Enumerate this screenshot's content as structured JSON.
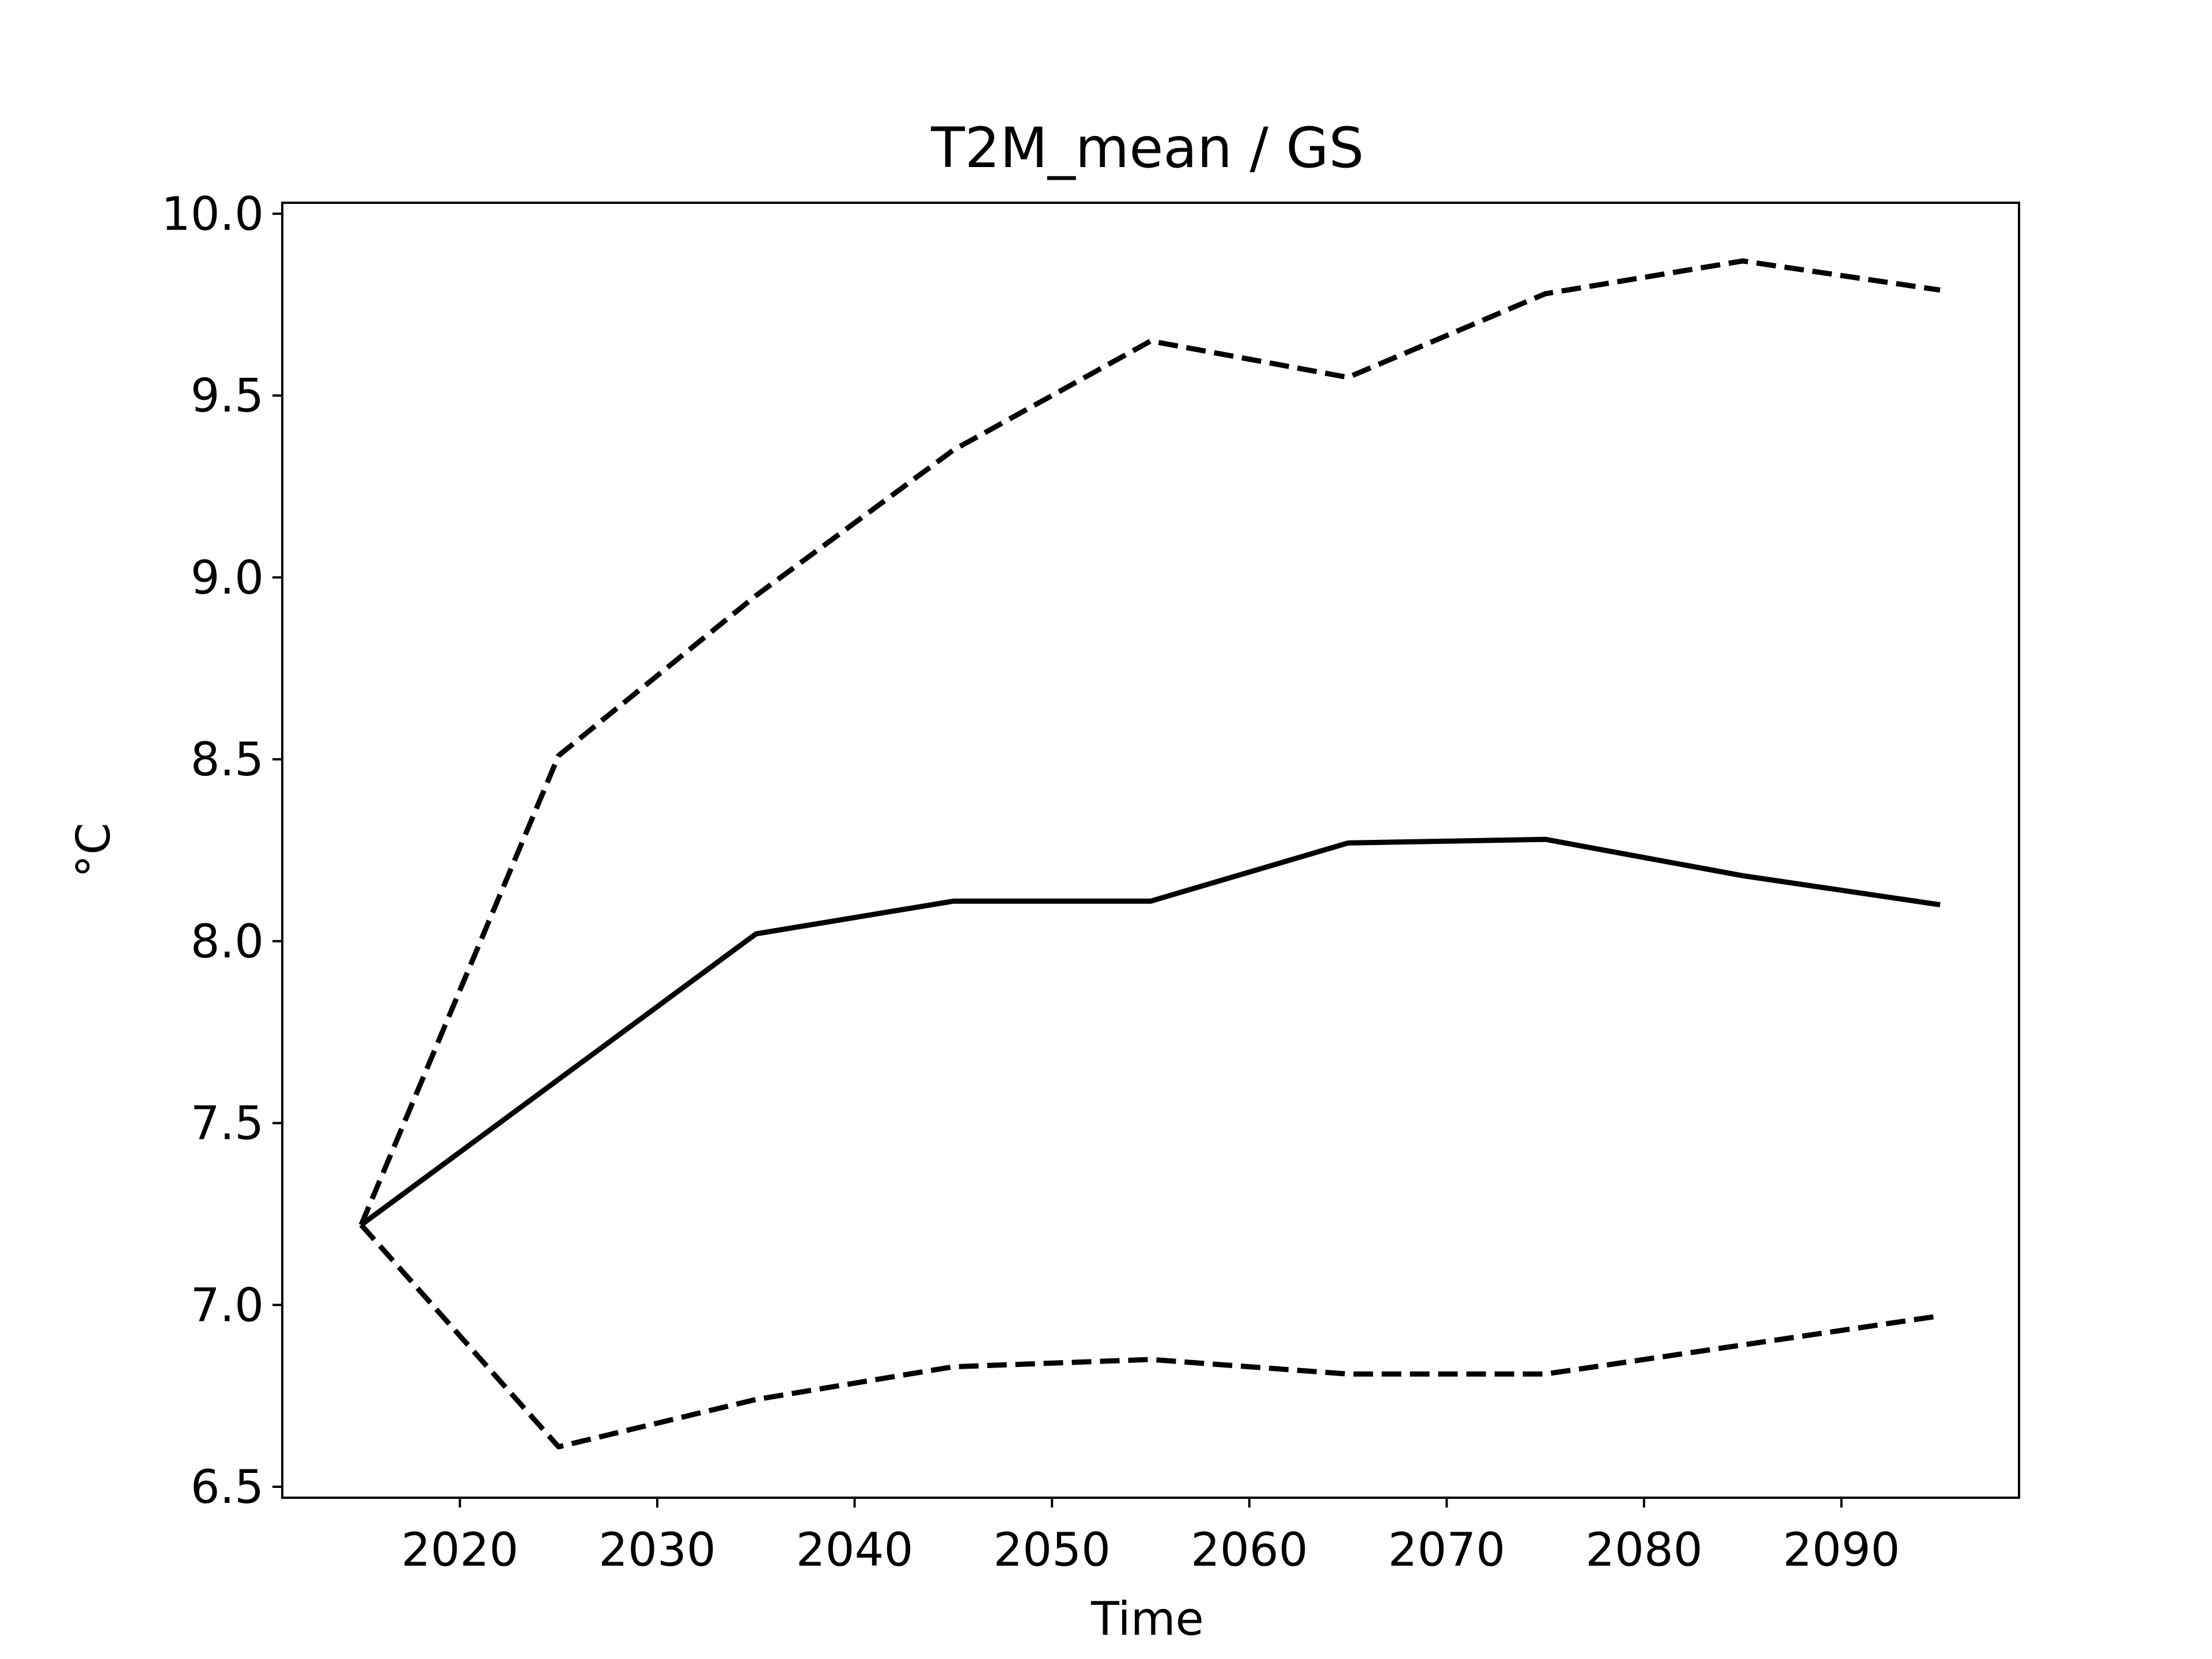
{
  "chart_data": {
    "type": "line",
    "title": "T2M_mean / GS",
    "xlabel": "Time",
    "ylabel": "°C",
    "xlim": [
      2011,
      2099
    ],
    "ylim": [
      6.47,
      10.03
    ],
    "x_ticks": [
      2020,
      2030,
      2040,
      2050,
      2060,
      2070,
      2080,
      2090
    ],
    "y_ticks": [
      6.5,
      7.0,
      7.5,
      8.0,
      8.5,
      9.0,
      9.5,
      10.0
    ],
    "x_tick_labels": [
      "2020",
      "2030",
      "2040",
      "2050",
      "2060",
      "2070",
      "2080",
      "2090"
    ],
    "y_tick_labels": [
      "6.5",
      "7.0",
      "7.5",
      "8.0",
      "8.5",
      "9.0",
      "9.5",
      "10.0"
    ],
    "grid": false,
    "series": [
      {
        "style": "solid",
        "color": "#000000",
        "x": [
          2015,
          2025,
          2035,
          2045,
          2055,
          2065,
          2075,
          2085,
          2095
        ],
        "y": [
          7.22,
          7.62,
          8.02,
          8.11,
          8.11,
          8.27,
          8.28,
          8.18,
          8.1
        ]
      },
      {
        "style": "dashed",
        "color": "#000000",
        "x": [
          2015,
          2025,
          2035,
          2045,
          2055,
          2065,
          2075,
          2085,
          2095
        ],
        "y": [
          7.22,
          8.51,
          8.95,
          9.35,
          9.65,
          9.55,
          9.78,
          9.87,
          9.79
        ]
      },
      {
        "style": "dashed",
        "color": "#000000",
        "x": [
          2015,
          2025,
          2035,
          2045,
          2055,
          2065,
          2075,
          2085,
          2095
        ],
        "y": [
          7.22,
          6.61,
          6.74,
          6.83,
          6.85,
          6.81,
          6.81,
          6.89,
          6.97
        ]
      }
    ]
  }
}
